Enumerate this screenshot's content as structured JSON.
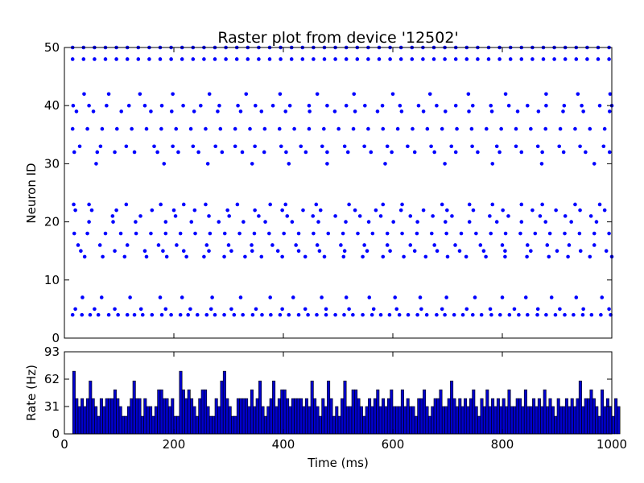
{
  "chart_data": [
    {
      "type": "scatter",
      "title": "Raster plot from device '12502'",
      "xlabel": "",
      "ylabel": "Neuron ID",
      "xlim": [
        0,
        1000
      ],
      "ylim": [
        0,
        50
      ],
      "yticks": [
        0,
        10,
        20,
        30,
        40,
        50
      ],
      "marker_color": "#0000ff",
      "grid": false,
      "neurons": [
        {
          "id": 4,
          "times": [
            15,
            32,
            47,
            62,
            81,
            98,
            115,
            128,
            143,
            160,
            178,
            195,
            212,
            226,
            243,
            260,
            275,
            292,
            310,
            326,
            344,
            361,
            377,
            394,
            410,
            428,
            445,
            461,
            478,
            495,
            511,
            527,
            545,
            562,
            578,
            594,
            612,
            628,
            645,
            662,
            680,
            695,
            712,
            728,
            746,
            762,
            780,
            796,
            813,
            830,
            846,
            864,
            880,
            897,
            914,
            930,
            947,
            963,
            980,
            998
          ]
        },
        {
          "id": 5,
          "times": [
            20,
            55,
            92,
            140,
            185,
            230,
            268,
            305,
            350,
            398,
            440,
            478,
            520,
            565,
            607,
            652,
            690,
            735,
            778,
            822,
            865,
            905,
            948,
            995
          ]
        },
        {
          "id": 7,
          "times": [
            33,
            68,
            120,
            175,
            215,
            270,
            322,
            376,
            418,
            470,
            515,
            557,
            604,
            650,
            698,
            750,
            800,
            843,
            890,
            935,
            982
          ]
        },
        {
          "id": 14,
          "times": [
            37,
            70,
            110,
            150,
            187,
            223,
            255,
            292,
            330,
            360,
            398,
            440,
            475,
            510,
            545,
            582,
            620,
            660,
            700,
            734,
            770,
            805,
            845,
            885,
            920,
            960,
            1000
          ]
        },
        {
          "id": 15,
          "times": [
            30,
            92,
            147,
            180,
            218,
            264,
            305,
            343,
            390,
            428,
            466,
            512,
            553,
            595,
            640,
            681,
            722,
            766,
            805,
            852,
            900,
            943,
            990
          ]
        },
        {
          "id": 16,
          "times": [
            25,
            65,
            115,
            172,
            205,
            260,
            300,
            342,
            380,
            423,
            462,
            505,
            548,
            590,
            632,
            676,
            714,
            760,
            800,
            846,
            882,
            922,
            968
          ]
        },
        {
          "id": 18,
          "times": [
            18,
            42,
            75,
            103,
            131,
            158,
            185,
            212,
            239,
            266,
            293,
            320,
            347,
            374,
            401,
            428,
            455,
            482,
            509,
            536,
            563,
            590,
            617,
            644,
            671,
            698,
            725,
            752,
            779,
            806,
            833,
            860,
            887,
            914,
            941,
            968,
            995
          ]
        },
        {
          "id": 20,
          "times": [
            45,
            89,
            130,
            185,
            232,
            282,
            327,
            367,
            416,
            464,
            514,
            556,
            601,
            645,
            696,
            740,
            790,
            835,
            879,
            926,
            972
          ]
        },
        {
          "id": 21,
          "times": [
            88,
            139,
            203,
            264,
            301,
            355,
            407,
            454,
            495,
            540,
            578,
            632,
            673,
            708,
            777,
            811,
            869,
            915,
            962
          ]
        },
        {
          "id": 22,
          "times": [
            20,
            50,
            95,
            160,
            200,
            238,
            298,
            348,
            398,
            436,
            468,
            531,
            569,
            615,
            656,
            699,
            747,
            801,
            855,
            898,
            942,
            987
          ]
        },
        {
          "id": 23,
          "times": [
            17,
            45,
            113,
            176,
            218,
            258,
            316,
            376,
            404,
            460,
            520,
            582,
            617,
            690,
            740,
            782,
            835,
            873,
            933,
            978
          ]
        },
        {
          "id": 30,
          "times": [
            58,
            182,
            262,
            343,
            410,
            480,
            586,
            695,
            782,
            872,
            968
          ]
        },
        {
          "id": 32,
          "times": [
            18,
            60,
            92,
            128,
            170,
            208,
            245,
            288,
            325,
            365,
            405,
            441,
            480,
            518,
            560,
            598,
            640,
            676,
            715,
            755,
            795,
            835,
            873,
            912,
            952,
            996
          ]
        },
        {
          "id": 33,
          "times": [
            28,
            66,
            113,
            164,
            198,
            235,
            276,
            312,
            348,
            396,
            432,
            471,
            512,
            548,
            590,
            627,
            670,
            707,
            745,
            790,
            825,
            865,
            904,
            942,
            985
          ]
        },
        {
          "id": 36,
          "times": [
            15,
            42,
            69,
            96,
            123,
            150,
            177,
            204,
            231,
            258,
            285,
            312,
            339,
            366,
            393,
            420,
            447,
            474,
            501,
            528,
            555,
            582,
            609,
            636,
            663,
            690,
            717,
            744,
            771,
            798,
            825,
            852,
            879,
            906,
            933,
            960,
            987
          ]
        },
        {
          "id": 39,
          "times": [
            22,
            53,
            104,
            158,
            196,
            237,
            280,
            322,
            360,
            404,
            448,
            494,
            531,
            572,
            616,
            656,
            696,
            739,
            781,
            828,
            866,
            911,
            948,
            996
          ]
        },
        {
          "id": 40,
          "times": [
            16,
            45,
            77,
            118,
            147,
            178,
            217,
            249,
            283,
            317,
            349,
            381,
            412,
            447,
            480,
            515,
            549,
            581,
            613,
            647,
            680,
            715,
            746,
            779,
            812,
            846,
            880,
            913,
            945,
            978,
            1000
          ]
        },
        {
          "id": 42,
          "times": [
            36,
            81,
            138,
            198,
            265,
            332,
            394,
            462,
            529,
            600,
            668,
            738,
            806,
            880,
            938,
            997
          ]
        },
        {
          "id": 48,
          "times": [
            15,
            35,
            55,
            75,
            95,
            115,
            135,
            155,
            175,
            195,
            215,
            235,
            255,
            275,
            295,
            315,
            335,
            355,
            375,
            395,
            415,
            435,
            455,
            475,
            495,
            515,
            535,
            555,
            575,
            595,
            615,
            635,
            655,
            675,
            695,
            715,
            735,
            755,
            775,
            795,
            815,
            835,
            855,
            875,
            895,
            915,
            935,
            955,
            975,
            995
          ]
        },
        {
          "id": 50,
          "times": [
            15,
            35,
            55,
            75,
            95,
            115,
            135,
            155,
            175,
            195,
            215,
            235,
            255,
            275,
            295,
            315,
            335,
            355,
            375,
            395,
            415,
            435,
            455,
            475,
            495,
            515,
            535,
            555,
            575,
            595,
            615,
            635,
            655,
            675,
            695,
            715,
            735,
            755,
            775,
            795,
            815,
            835,
            855,
            875,
            895,
            915,
            935,
            955,
            975,
            995
          ]
        }
      ]
    },
    {
      "type": "bar",
      "title": "",
      "xlabel": "Time (ms)",
      "ylabel": "Rate (Hz)",
      "xlim": [
        0,
        1000
      ],
      "ylim": [
        0,
        93
      ],
      "xticks": [
        0,
        200,
        400,
        600,
        800,
        1000
      ],
      "yticks": [
        0,
        31,
        62,
        93
      ],
      "bin_width": 5,
      "bin_start": 15,
      "bar_color": "#0000cc",
      "edge_color": "#000000",
      "grid": false,
      "values": [
        71,
        40,
        31,
        40,
        31,
        40,
        60,
        40,
        31,
        20,
        40,
        31,
        40,
        40,
        40,
        50,
        40,
        31,
        20,
        20,
        31,
        40,
        60,
        40,
        40,
        20,
        40,
        31,
        31,
        20,
        31,
        50,
        50,
        40,
        40,
        31,
        40,
        20,
        20,
        71,
        50,
        40,
        50,
        40,
        31,
        20,
        40,
        50,
        50,
        31,
        20,
        20,
        40,
        31,
        60,
        71,
        40,
        31,
        20,
        20,
        40,
        40,
        40,
        40,
        31,
        50,
        31,
        40,
        60,
        31,
        20,
        31,
        40,
        60,
        31,
        40,
        50,
        50,
        40,
        31,
        40,
        40,
        40,
        40,
        31,
        40,
        31,
        60,
        40,
        31,
        20,
        40,
        31,
        60,
        40,
        20,
        31,
        20,
        40,
        60,
        31,
        31,
        50,
        50,
        40,
        31,
        20,
        31,
        40,
        31,
        40,
        50,
        31,
        40,
        31,
        40,
        50,
        31,
        31,
        31,
        50,
        31,
        40,
        31,
        31,
        20,
        40,
        40,
        50,
        31,
        20,
        31,
        40,
        40,
        50,
        31,
        31,
        40,
        60,
        40,
        31,
        40,
        31,
        40,
        31,
        40,
        50,
        31,
        20,
        40,
        31,
        50,
        31,
        40,
        31,
        40,
        31,
        40,
        31,
        50,
        31,
        31,
        40,
        40,
        31,
        50,
        31,
        31,
        40,
        31,
        40,
        31,
        50,
        31,
        40,
        31,
        20,
        40,
        31,
        31,
        40,
        31,
        40,
        31,
        40,
        60,
        31,
        40,
        40,
        50,
        40,
        31,
        20,
        50,
        31,
        40,
        31,
        20,
        40,
        31
      ]
    }
  ]
}
